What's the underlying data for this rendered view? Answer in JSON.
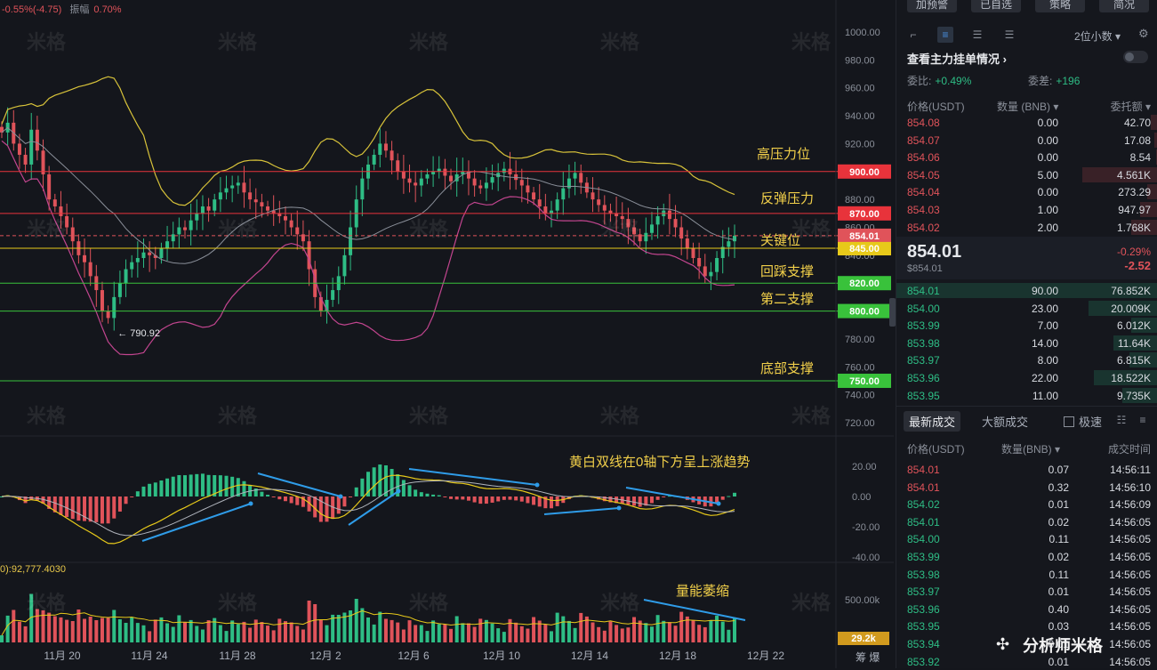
{
  "header": {
    "change": "-0.55%(-4.75)",
    "amplitude_label": "振幅",
    "amplitude": "0.70%"
  },
  "volume_header": "0):92,777.4030",
  "watermark": "米格",
  "chart_data": {
    "type": "candlestick",
    "price_axis": {
      "min": 720,
      "max": 1000,
      "ticks": [
        1000,
        980,
        960,
        940,
        920,
        880,
        860,
        840,
        780,
        760,
        740,
        720
      ],
      "tick_labels": [
        "1000.00",
        "980.00",
        "960.00",
        "940.00",
        "920.00",
        "880.00",
        "860.00",
        "840.00",
        "780.00",
        "760.00",
        "740.00",
        "720.00"
      ]
    },
    "date_labels": [
      "11月 20",
      "11月 24",
      "11月 28",
      "12月 2",
      "12月 6",
      "12月 10",
      "12月 14",
      "12月 18",
      "12月 22"
    ],
    "levels": [
      {
        "value": 900,
        "label": "900.00",
        "name": "高压力位",
        "color": "#e8333b"
      },
      {
        "value": 870,
        "label": "870.00",
        "name": "反弹压力",
        "color": "#e8333b"
      },
      {
        "value": 845,
        "label": "845.00",
        "name": "关键位",
        "color": "#e7c91a"
      },
      {
        "value": 820,
        "label": "820.00",
        "name": "回踩支撑",
        "color": "#39c23b"
      },
      {
        "value": 800,
        "label": "800.00",
        "name": "第二支撑",
        "color": "#39c23b"
      },
      {
        "value": 750,
        "label": "750.00",
        "name": "底部支撑",
        "color": "#39c23b"
      }
    ],
    "current_price": {
      "value": 854.01,
      "label": "854.01"
    },
    "low_marker": {
      "value": 790.92,
      "label": "← 790.92"
    },
    "closes": [
      928,
      935,
      920,
      912,
      905,
      930,
      915,
      898,
      880,
      875,
      868,
      860,
      850,
      840,
      835,
      825,
      815,
      800,
      795,
      810,
      820,
      830,
      835,
      838,
      842,
      840,
      838,
      845,
      850,
      855,
      860,
      858,
      865,
      870,
      875,
      872,
      880,
      885,
      888,
      890,
      892,
      885,
      880,
      878,
      875,
      872,
      870,
      868,
      865,
      860,
      855,
      850,
      830,
      810,
      800,
      808,
      815,
      825,
      840,
      860,
      880,
      895,
      905,
      912,
      920,
      915,
      908,
      900,
      895,
      892,
      890,
      895,
      898,
      900,
      902,
      897,
      893,
      898,
      900,
      895,
      890,
      888,
      892,
      896,
      899,
      902,
      898,
      894,
      890,
      885,
      880,
      875,
      870,
      872,
      880,
      888,
      895,
      899,
      892,
      885,
      880,
      876,
      872,
      870,
      868,
      866,
      860,
      855,
      850,
      856,
      862,
      868,
      872,
      866,
      860,
      852,
      845,
      838,
      832,
      825,
      828,
      838,
      846,
      850,
      854
    ],
    "macd": {
      "axis_ticks": [
        20,
        0,
        -20,
        -40
      ],
      "tick_labels": [
        "20.00",
        "0.00",
        "-20.00",
        "-40.00"
      ],
      "note": "黄白双线在0轴下方呈上涨趋势"
    },
    "volume": {
      "axis_label": "500.00k",
      "current": "29.2k",
      "note": "量能萎缩"
    }
  },
  "annotations": [
    {
      "text": "高压力位"
    },
    {
      "text": "反弹压力"
    },
    {
      "text": "关键位"
    },
    {
      "text": "回踩支撑"
    },
    {
      "text": "第二支撑"
    },
    {
      "text": "底部支撑"
    },
    {
      "text": "黄白双线在0轴下方呈上涨趋势"
    },
    {
      "text": "量能萎缩"
    }
  ],
  "orderbook": {
    "buttons": [
      "加预警",
      "已自选",
      "策略",
      "简况"
    ],
    "precision": "2位小数 ▾",
    "main_flow": "查看主力挂单情况 ›",
    "ratio_label": "委比:",
    "ratio_value": "+0.49%",
    "diff_label": "委差:",
    "diff_value": "+196",
    "head_price": "价格(USDT)",
    "head_qty": "数量 (BNB) ▾",
    "head_total": "委托额 ▾",
    "asks": [
      {
        "p": "854.08",
        "q": "0.00",
        "t": "42.70",
        "w": 8
      },
      {
        "p": "854.07",
        "q": "0.00",
        "t": "17.08",
        "w": 4
      },
      {
        "p": "854.06",
        "q": "0.00",
        "t": "8.54",
        "w": 2
      },
      {
        "p": "854.05",
        "q": "5.00",
        "t": "4.561K",
        "w": 85
      },
      {
        "p": "854.04",
        "q": "0.00",
        "t": "273.29",
        "w": 12
      },
      {
        "p": "854.03",
        "q": "1.00",
        "t": "947.97",
        "w": 20
      },
      {
        "p": "854.02",
        "q": "2.00",
        "t": "1.768K",
        "w": 30
      }
    ],
    "mid_price": "854.01",
    "mid_sub": "$854.01",
    "mid_change_pct": "-0.29%",
    "mid_change": "-2.52",
    "bids": [
      {
        "p": "854.01",
        "q": "90.00",
        "t": "76.852K",
        "w": 294
      },
      {
        "p": "854.00",
        "q": "23.00",
        "t": "20.009K",
        "w": 78
      },
      {
        "p": "853.99",
        "q": "7.00",
        "t": "6.012K",
        "w": 30
      },
      {
        "p": "853.98",
        "q": "14.00",
        "t": "11.64K",
        "w": 50
      },
      {
        "p": "853.97",
        "q": "8.00",
        "t": "6.815K",
        "w": 32
      },
      {
        "p": "853.96",
        "q": "22.00",
        "t": "18.522K",
        "w": 72
      },
      {
        "p": "853.95",
        "q": "11.00",
        "t": "9.735K",
        "w": 40
      }
    ],
    "trade_tab": "最新成交",
    "big_tab": "大额成交",
    "fast_label": "极速",
    "trade_head_price": "价格(USDT)",
    "trade_head_qty": "数量(BNB) ▾",
    "trade_head_time": "成交时间",
    "trades": [
      {
        "p": "854.01",
        "q": "0.07",
        "t": "14:56:11",
        "s": "down"
      },
      {
        "p": "854.01",
        "q": "0.32",
        "t": "14:56:10",
        "s": "down"
      },
      {
        "p": "854.02",
        "q": "0.01",
        "t": "14:56:09",
        "s": "up"
      },
      {
        "p": "854.01",
        "q": "0.02",
        "t": "14:56:05",
        "s": "up"
      },
      {
        "p": "854.00",
        "q": "0.11",
        "t": "14:56:05",
        "s": "up"
      },
      {
        "p": "853.99",
        "q": "0.02",
        "t": "14:56:05",
        "s": "up"
      },
      {
        "p": "853.98",
        "q": "0.11",
        "t": "14:56:05",
        "s": "up"
      },
      {
        "p": "853.97",
        "q": "0.01",
        "t": "14:56:05",
        "s": "up"
      },
      {
        "p": "853.96",
        "q": "0.40",
        "t": "14:56:05",
        "s": "up"
      },
      {
        "p": "853.95",
        "q": "0.03",
        "t": "14:56:05",
        "s": "up"
      },
      {
        "p": "853.94",
        "q": "0.01",
        "t": "14:56:05",
        "s": "up"
      },
      {
        "p": "853.92",
        "q": "0.01",
        "t": "14:56:05",
        "s": "up"
      }
    ]
  },
  "brand": "分析师米格",
  "bottom_labels": "筹 爆"
}
